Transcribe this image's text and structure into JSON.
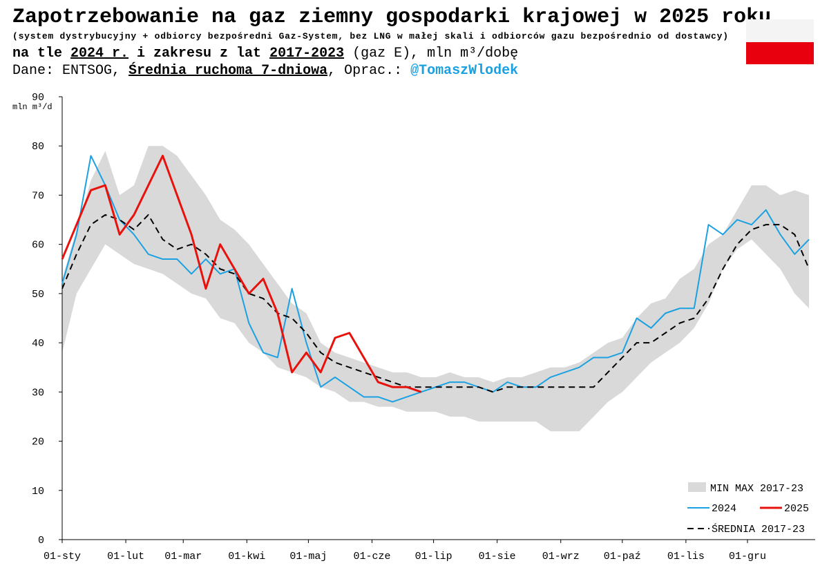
{
  "chart_data": {
    "type": "line",
    "title": "Zapotrzebowanie na gaz ziemny gospodarki krajowej w 2025 roku",
    "note": "(system dystrybucyjny + odbiorcy bezpośredni Gaz-System, bez LNG w małej skali i odbiorców gazu bezpośrednio od dostawcy)",
    "subtitle": [
      "na tle ",
      "2024 r.",
      " i zakresu z lat ",
      "2017-2023",
      " (gaz E), mln m³/dobę"
    ],
    "source": [
      "Dane: ENTSOG, ",
      "Średnia ruchoma 7-dniowa",
      ", Oprac.: ",
      "@TomaszWlodek"
    ],
    "ylabel": "mln m³/d",
    "x": [
      0,
      7,
      14,
      21,
      28,
      35,
      42,
      49,
      56,
      63,
      70,
      77,
      84,
      91,
      98,
      105,
      112,
      119,
      126,
      133,
      140,
      147,
      154,
      161,
      168,
      175,
      182,
      189,
      196,
      203,
      210,
      217,
      224,
      231,
      238,
      245,
      252,
      259,
      266,
      273,
      280,
      287,
      294,
      301,
      308,
      315,
      322,
      329,
      336,
      343,
      350,
      357,
      364
    ],
    "band": {
      "name": "MIN MAX 2017-23",
      "color": "#d9d9d9",
      "high": [
        53,
        63,
        73,
        79,
        70,
        72,
        80,
        80,
        78,
        74,
        70,
        65,
        63,
        60,
        56,
        52,
        48,
        46,
        40,
        38,
        37,
        36,
        35,
        34,
        34,
        33,
        33,
        34,
        33,
        33,
        32,
        33,
        33,
        34,
        35,
        35,
        36,
        38,
        40,
        41,
        45,
        48,
        49,
        53,
        55,
        60,
        62,
        67,
        72,
        72,
        70,
        71,
        70
      ],
      "low": [
        38,
        50,
        55,
        60,
        58,
        56,
        55,
        54,
        52,
        50,
        49,
        45,
        44,
        40,
        38,
        35,
        34,
        33,
        31,
        30,
        28,
        28,
        27,
        27,
        26,
        26,
        26,
        25,
        25,
        24,
        24,
        24,
        24,
        24,
        22,
        22,
        22,
        25,
        28,
        30,
        33,
        36,
        38,
        40,
        43,
        48,
        55,
        59,
        61,
        58,
        55,
        50,
        47
      ]
    },
    "series": [
      {
        "name": "2024",
        "color": "#1ba1e2",
        "dash": false,
        "width": 2,
        "values": [
          52,
          62,
          78,
          72,
          65,
          62,
          58,
          57,
          57,
          54,
          57,
          54,
          55,
          44,
          38,
          37,
          51,
          40,
          31,
          33,
          31,
          29,
          29,
          28,
          29,
          30,
          31,
          32,
          32,
          31,
          30,
          32,
          31,
          31,
          33,
          34,
          35,
          37,
          37,
          38,
          45,
          43,
          46,
          47,
          47,
          64,
          62,
          65,
          64,
          67,
          62,
          58,
          61
        ]
      },
      {
        "name": "2025",
        "color": "#e8120c",
        "dash": false,
        "width": 3,
        "values": [
          57,
          64,
          71,
          72,
          62,
          66,
          72,
          78,
          70,
          62,
          51,
          60,
          55,
          50,
          53,
          46,
          34,
          38,
          34,
          41,
          42,
          37,
          32,
          31,
          31,
          30,
          null,
          null,
          null,
          null,
          null,
          null,
          null,
          null,
          null,
          null,
          null,
          null,
          null,
          null,
          null,
          null,
          null,
          null,
          null,
          null,
          null,
          null,
          null,
          null,
          null,
          null,
          null
        ]
      },
      {
        "name": "ŚREDNIA 2017-23",
        "color": "#000000",
        "dash": true,
        "width": 2,
        "values": [
          51,
          58,
          64,
          66,
          65,
          63,
          66,
          61,
          59,
          60,
          58,
          55,
          54,
          50,
          49,
          46,
          45,
          42,
          38,
          36,
          35,
          34,
          33,
          32,
          31,
          31,
          31,
          31,
          31,
          31,
          30,
          31,
          31,
          31,
          31,
          31,
          31,
          31,
          34,
          37,
          40,
          40,
          42,
          44,
          45,
          49,
          55,
          60,
          63,
          64,
          64,
          62,
          55
        ]
      }
    ],
    "xlim": [
      0,
      367
    ],
    "xticks": [
      {
        "value": 0,
        "label": "01-sty"
      },
      {
        "value": 31,
        "label": "01-lut"
      },
      {
        "value": 59,
        "label": "01-mar"
      },
      {
        "value": 90,
        "label": "01-kwi"
      },
      {
        "value": 120,
        "label": "01-maj"
      },
      {
        "value": 151,
        "label": "01-cze"
      },
      {
        "value": 181,
        "label": "01-lip"
      },
      {
        "value": 212,
        "label": "01-sie"
      },
      {
        "value": 243,
        "label": "01-wrz"
      },
      {
        "value": 273,
        "label": "01-paź"
      },
      {
        "value": 304,
        "label": "01-lis"
      },
      {
        "value": 334,
        "label": "01-gru"
      }
    ],
    "ylim": [
      0,
      90
    ],
    "yticks": [
      0,
      10,
      20,
      30,
      40,
      50,
      60,
      70,
      80,
      90
    ],
    "grid": false
  }
}
